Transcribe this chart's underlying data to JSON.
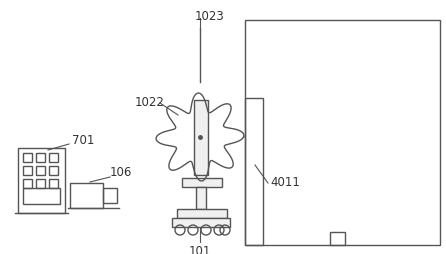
{
  "bg_color": "#ffffff",
  "line_color": "#555555",
  "label_color": "#333333",
  "label_fontsize": 8.5,
  "fig_width": 4.46,
  "fig_height": 2.54,
  "dpi": 100
}
